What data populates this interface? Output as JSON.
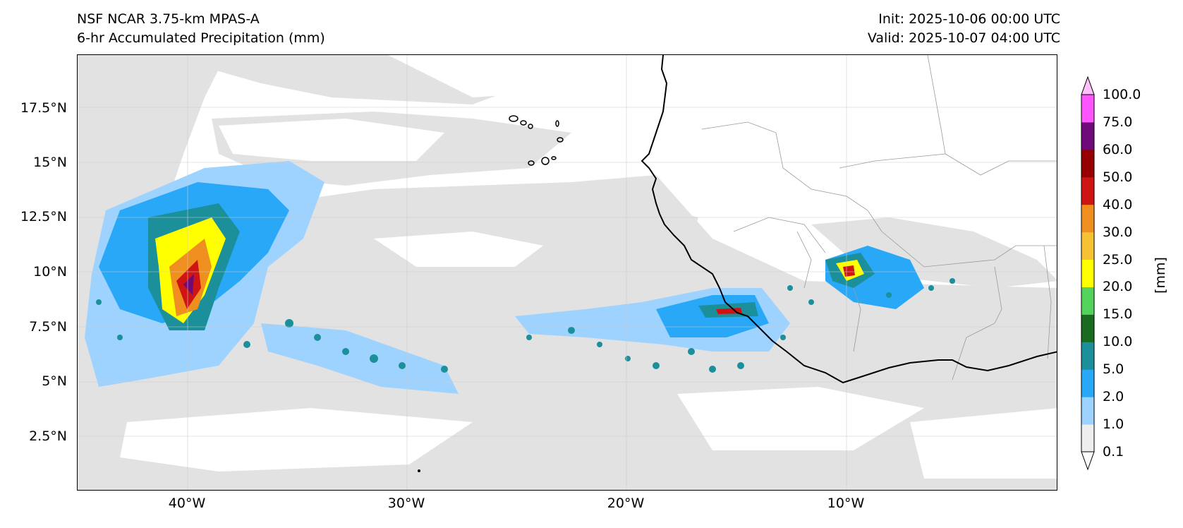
{
  "header": {
    "model": "NSF NCAR 3.75-km MPAS-A",
    "field": "6-hr Accumulated Precipitation (mm)",
    "init": "Init: 2025-10-06 00:00 UTC",
    "valid": "Valid: 2025-10-07 04:00 UTC"
  },
  "map": {
    "lon_range": [
      -45,
      -0.6
    ],
    "lat_range": [
      0.2,
      19.9
    ],
    "lat_ticks": [
      "2.5°N",
      "5°N",
      "7.5°N",
      "10°N",
      "12.5°N",
      "15°N",
      "17.5°N"
    ],
    "lat_tick_values": [
      2.5,
      5,
      7.5,
      10,
      12.5,
      15,
      17.5
    ],
    "lon_ticks": [
      "40°W",
      "30°W",
      "20°W",
      "10°W"
    ],
    "lon_tick_values": [
      -40,
      -30,
      -20,
      -10
    ],
    "gridlines": true
  },
  "colorbar": {
    "unit": "[mm]",
    "levels": [
      "0.1",
      "1.0",
      "2.0",
      "5.0",
      "10.0",
      "15.0",
      "20.0",
      "25.0",
      "30.0",
      "40.0",
      "50.0",
      "60.0",
      "75.0",
      "100.0"
    ],
    "colors": [
      "#eeeeee",
      "#9fd3ff",
      "#2aa8f8",
      "#1b8f9a",
      "#1a6b1f",
      "#54d35c",
      "#ffff00",
      "#f4c232",
      "#ef8f1f",
      "#cf1414",
      "#960000",
      "#6e0a7a",
      "#ff55ff",
      "#ffbff7"
    ]
  }
}
